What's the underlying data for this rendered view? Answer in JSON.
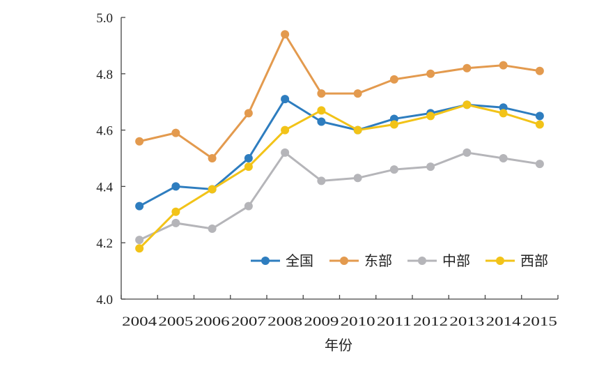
{
  "chart_data": {
    "type": "line",
    "title": "",
    "xlabel": "年份",
    "ylabel": "",
    "x": [
      "2004",
      "2005",
      "2006",
      "2007",
      "2008",
      "2009",
      "2010",
      "2011",
      "2012",
      "2013",
      "2014",
      "2015"
    ],
    "ylim": [
      4.0,
      5.0
    ],
    "yticks": [
      "4.0",
      "4.2",
      "4.4",
      "4.6",
      "4.8",
      "5.0"
    ],
    "grid": false,
    "legend_position": "bottom-right",
    "series": [
      {
        "name": "全国",
        "color": "#2e7dbf",
        "values": [
          4.33,
          4.4,
          4.39,
          4.5,
          4.71,
          4.63,
          4.6,
          4.64,
          4.66,
          4.69,
          4.68,
          4.65
        ]
      },
      {
        "name": "东部",
        "color": "#e39a4e",
        "values": [
          4.56,
          4.59,
          4.5,
          4.66,
          4.94,
          4.73,
          4.73,
          4.78,
          4.8,
          4.82,
          4.83,
          4.81
        ]
      },
      {
        "name": "中部",
        "color": "#b5b5b9",
        "values": [
          4.21,
          4.27,
          4.25,
          4.33,
          4.52,
          4.42,
          4.43,
          4.46,
          4.47,
          4.52,
          4.5,
          4.48
        ]
      },
      {
        "name": "西部",
        "color": "#f2c318",
        "values": [
          4.18,
          4.31,
          4.39,
          4.47,
          4.6,
          4.67,
          4.6,
          4.62,
          4.65,
          4.69,
          4.66,
          4.62
        ]
      }
    ]
  }
}
